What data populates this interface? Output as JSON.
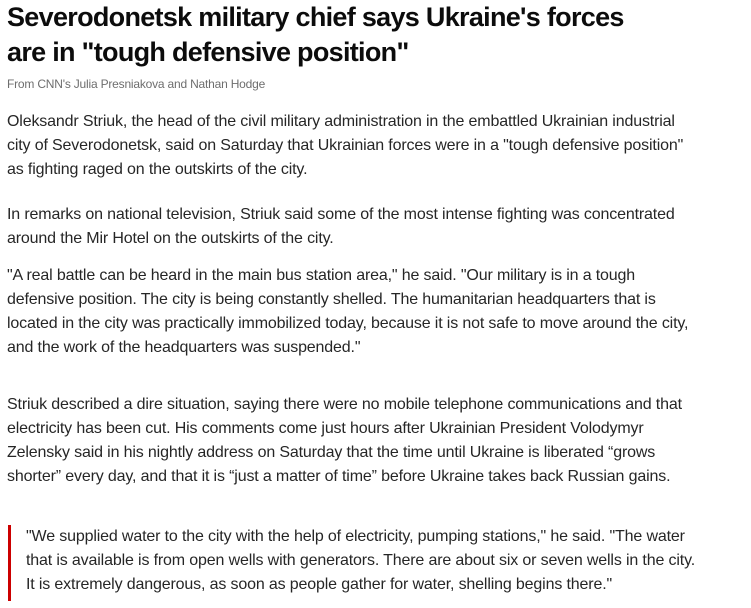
{
  "article": {
    "title_lines": [
      "Severodonetsk military chief says Ukraine's forces",
      "are in \"tough defensive position\""
    ],
    "byline": "From CNN's Julia Presniakova and Nathan Hodge",
    "paragraphs": [
      [
        "Oleksandr Striuk, the head of the civil military administration in the embattled Ukrainian industrial",
        "city of Severodonetsk, said on Saturday that Ukrainian forces were in a \"tough defensive position\"",
        "as fighting raged on the outskirts of the city."
      ],
      [
        "In remarks on national television, Striuk said some of the most intense fighting was concentrated",
        "around the Mir Hotel on the outskirts of the city."
      ],
      [
        "\"A real battle can be heard in the main bus station area,\" he said. \"Our military is in a tough",
        "defensive position. The city is being constantly shelled. The humanitarian headquarters that is",
        "located in the city was practically immobilized today, because it is not safe to move around the city,",
        "and the work of the headquarters was suspended.\""
      ],
      [
        "Striuk described a dire situation, saying there were no mobile telephone communications and that",
        "electricity has been cut. His comments come just hours after Ukrainian President Volodymyr",
        "Zelensky said in his nightly address on Saturday that the time until Ukraine is liberated “grows",
        "shorter” every day, and that it is “just a matter of time” before Ukraine takes back Russian gains."
      ]
    ],
    "blockquote": [
      "\"We supplied water to the city with the help of electricity, pumping stations,\" he said. \"The water",
      "that is available is from open wells with generators. There are about six or seven wells in the city.",
      "It is extremely dangerous, as soon as people gather for water, shelling begins there.\""
    ],
    "accent_color": "#cc0000"
  }
}
